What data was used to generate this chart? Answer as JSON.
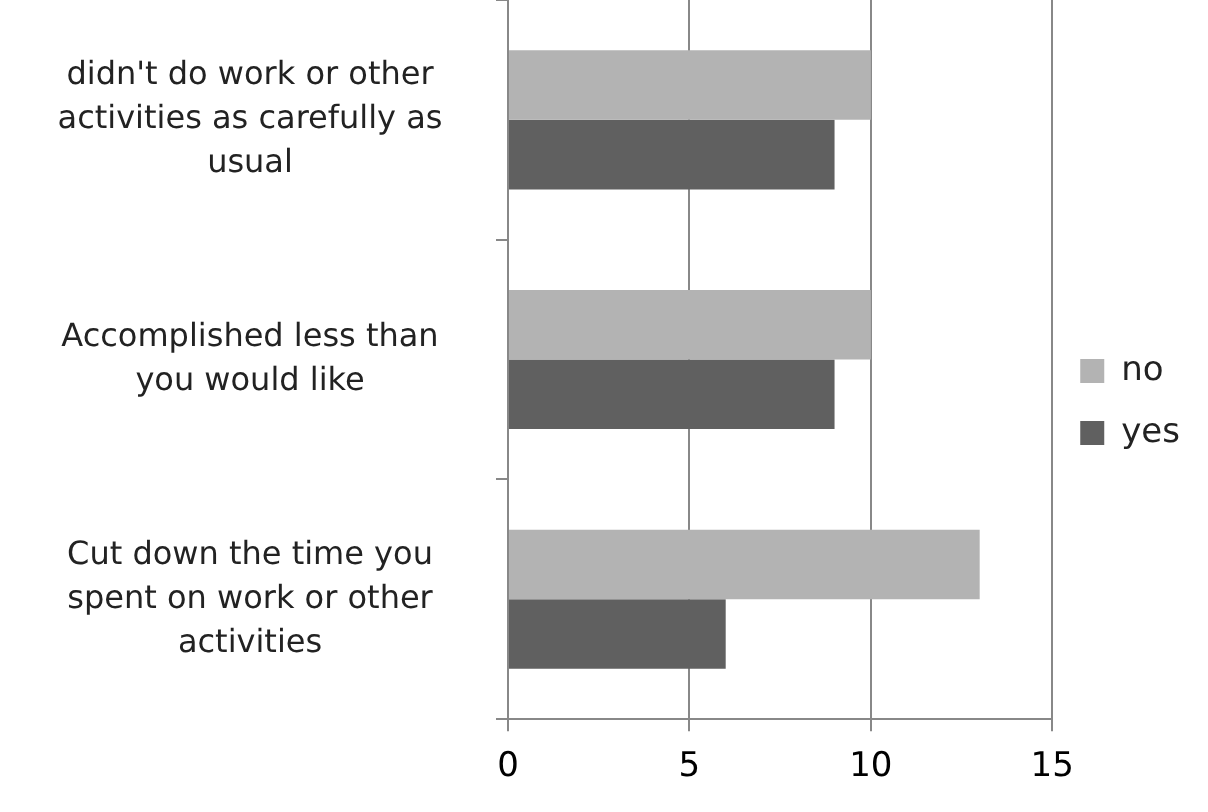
{
  "chart_data": {
    "type": "bar",
    "orientation": "horizontal",
    "categories": [
      "didn't do work or other activities as carefully as usual",
      "Accomplished less than you would like",
      "Cut down the time you spent on work or other activities"
    ],
    "series": [
      {
        "name": "no",
        "color": "#b3b3b3",
        "values": [
          10,
          10,
          13
        ]
      },
      {
        "name": "yes",
        "color": "#606060",
        "values": [
          9,
          9,
          6
        ]
      }
    ],
    "xlim": [
      0,
      15
    ],
    "xticks": [
      0,
      5,
      10,
      15
    ],
    "grid": "x",
    "legend": "right"
  }
}
